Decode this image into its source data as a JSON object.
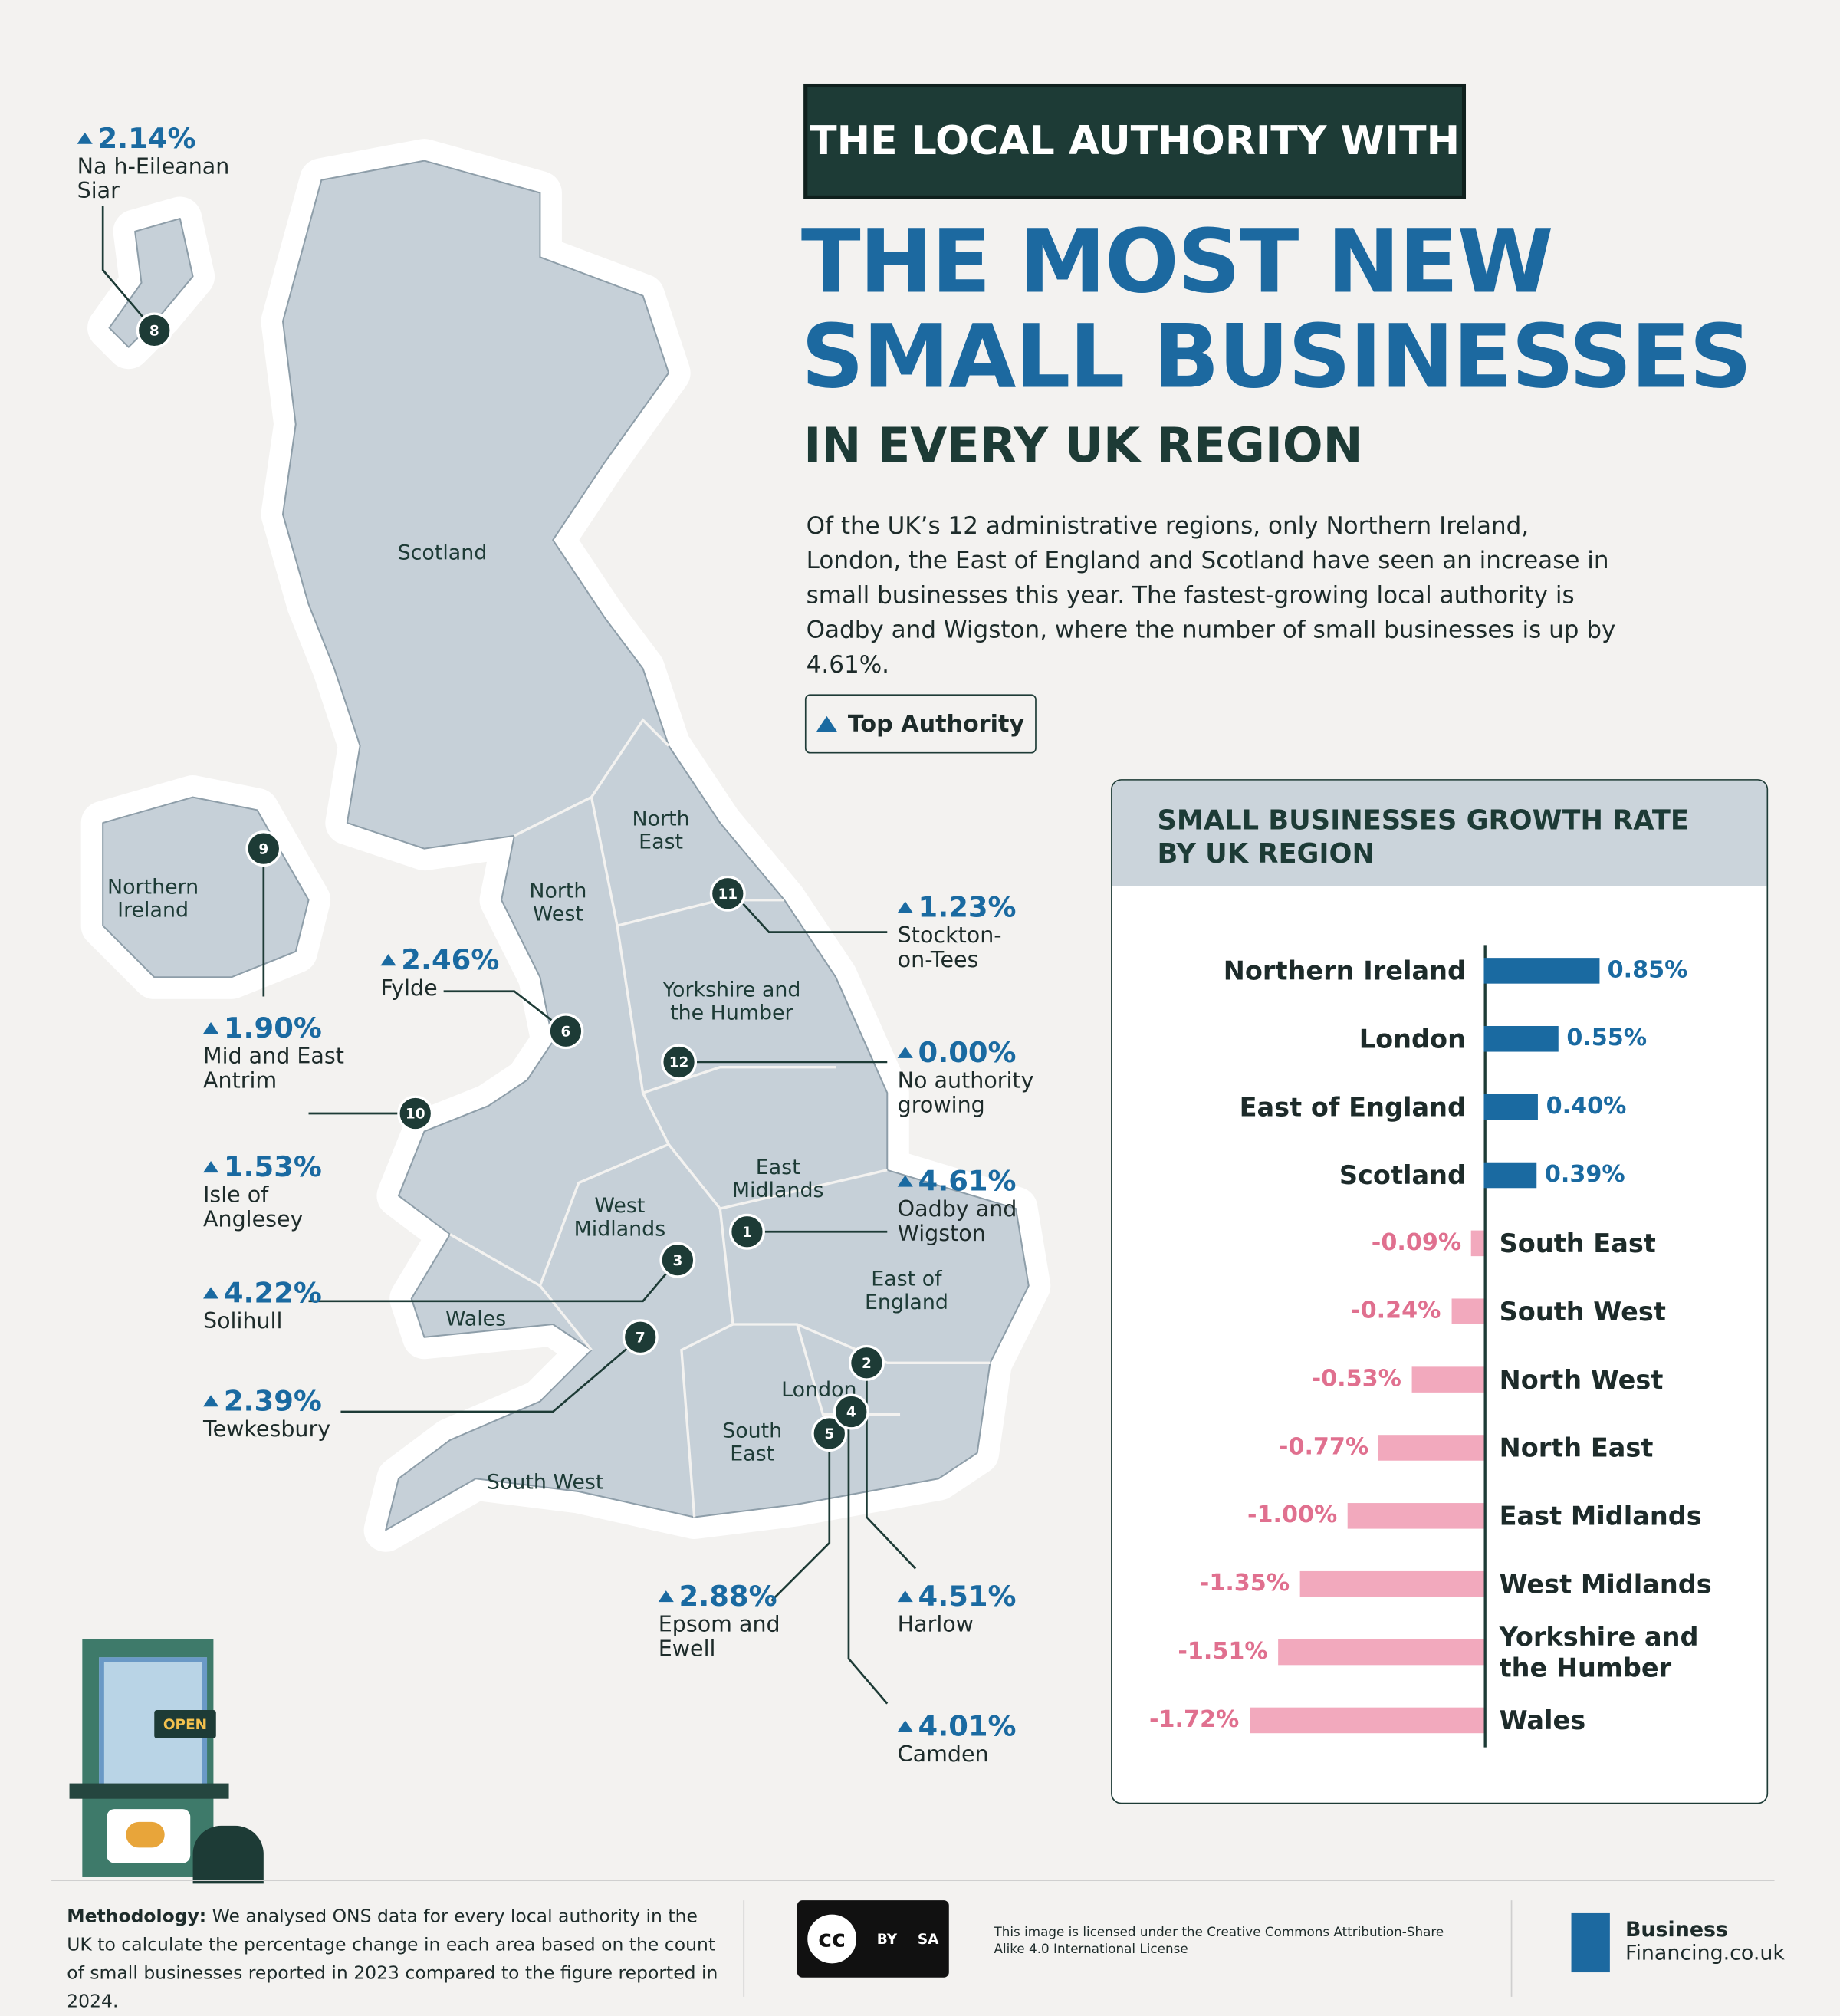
{
  "header": {
    "banner": "THE LOCAL AUTHORITY WITH",
    "title_lines": [
      "THE MOST NEW",
      "SMALL BUSINESSES"
    ],
    "subtitle": "IN EVERY UK REGION",
    "description": "Of the UK’s 12 administrative regions, only Northern Ireland, London, the East of England and Scotland have seen an increase in small businesses this year. The fastest-growing local authority is Oadby and Wigston, where the number of small businesses is up by 4.61%.",
    "legend": "Top Authority"
  },
  "map": {
    "regions": [
      "Scotland",
      "North East",
      "North West",
      "Northern Ireland",
      "Yorkshire and the Humber",
      "East Midlands",
      "West Midlands",
      "Wales",
      "East of England",
      "London",
      "South East",
      "South West"
    ],
    "callouts": [
      {
        "rank": "8",
        "value": "2.14%",
        "name": "Na h-Eileanan Siar"
      },
      {
        "rank": "9",
        "value": "1.90%",
        "name": "Mid and East Antrim"
      },
      {
        "rank": "10",
        "value": "1.53%",
        "name": "Isle of Anglesey"
      },
      {
        "rank": "3",
        "value": "4.22%",
        "name": "Solihull"
      },
      {
        "rank": "7",
        "value": "2.39%",
        "name": "Tewkesbury"
      },
      {
        "rank": "6",
        "value": "2.46%",
        "name": "Fylde"
      },
      {
        "rank": "11",
        "value": "1.23%",
        "name": "Stockton-on-Tees"
      },
      {
        "rank": "12",
        "value": "0.00%",
        "name": "No authority growing"
      },
      {
        "rank": "1",
        "value": "4.61%",
        "name": "Oadby and Wigston"
      },
      {
        "rank": "5",
        "value": "2.88%",
        "name": "Epsom and Ewell"
      },
      {
        "rank": "2",
        "value": "4.51%",
        "name": "Harlow"
      },
      {
        "rank": "4",
        "value": "4.01%",
        "name": "Camden"
      }
    ],
    "sign": "OPEN"
  },
  "chart_data": {
    "type": "bar",
    "orientation": "horizontal",
    "title": "SMALL BUSINESSES GROWTH RATE BY UK REGION",
    "categories": [
      "Northern Ireland",
      "London",
      "East of England",
      "Scotland",
      "South East",
      "South West",
      "North West",
      "North East",
      "East Midlands",
      "West Midlands",
      "Yorkshire and the Humber",
      "Wales"
    ],
    "values": [
      0.85,
      0.55,
      0.4,
      0.39,
      -0.09,
      -0.24,
      -0.53,
      -0.77,
      -1.0,
      -1.35,
      -1.51,
      -1.72
    ],
    "value_labels": [
      "0.85%",
      "0.55%",
      "0.40%",
      "0.39%",
      "-0.09%",
      "-0.24%",
      "-0.53%",
      "-0.77%",
      "-1.00%",
      "-1.35%",
      "-1.51%",
      "-1.72%"
    ],
    "positive_color": "#1a6aa1",
    "negative_color": "#f2a9bd"
  },
  "footer": {
    "methodology_label": "Methodology:",
    "methodology": "We analysed ONS data for every local authority in the UK to calculate the percentage change in each area based on the count of small businesses reported in 2023 compared to the figure reported in 2024.",
    "cc": "cc",
    "license_icons": [
      "BY",
      "SA"
    ],
    "license": "This image is licensed under the Creative Commons Attribution-Share Alike 4.0 International License",
    "brand": [
      "Business",
      "Financing.co.uk"
    ]
  }
}
